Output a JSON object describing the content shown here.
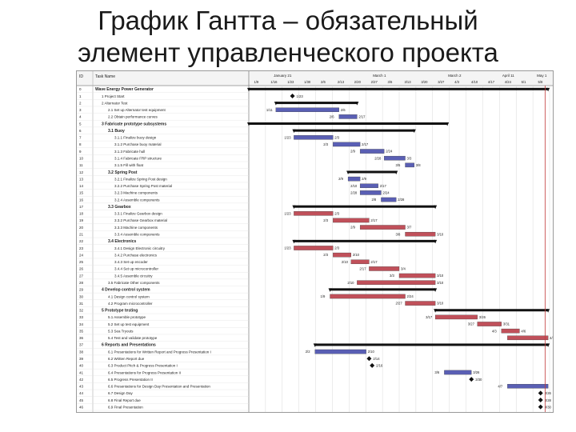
{
  "slide": {
    "title_line1": "График Гантта – обязательный",
    "title_line2": "элемент управленческого проекта"
  },
  "gantt": {
    "columns": {
      "id": "ID",
      "task": "Task Name"
    },
    "months": [
      "January 21",
      "March 1",
      "March 2",
      "April 11",
      "May 1"
    ],
    "weeks": [
      "1/9",
      "1/16",
      "1/23",
      "1/30",
      "2/6",
      "2/13",
      "2/20",
      "2/27",
      "3/6",
      "3/13",
      "3/20",
      "3/27",
      "4/3",
      "4/10",
      "4/17",
      "4/24",
      "5/1",
      "5/8"
    ],
    "rows": [
      {
        "id": "0",
        "name": "Wave Energy Power Generator",
        "level": 0,
        "bold": true,
        "bar": {
          "kind": "summary",
          "start": 0.0,
          "end": 0.995
        }
      },
      {
        "id": "1",
        "name": "1 Project Start",
        "level": 1,
        "bar": {
          "kind": "milestone",
          "start": 0.145,
          "label": "1/23"
        }
      },
      {
        "id": "2",
        "name": "2 Alternator Test",
        "level": 1,
        "bar": {
          "kind": "summary",
          "start": 0.09,
          "end": 0.36
        }
      },
      {
        "id": "3",
        "name": "2.1 Set up Alternator test equipment",
        "level": 2,
        "bar": {
          "kind": "blue",
          "start": 0.09,
          "end": 0.3,
          "l": "1/11",
          "r": "2/6"
        }
      },
      {
        "id": "4",
        "name": "2.2 Obtain performance curves",
        "level": 2,
        "bar": {
          "kind": "blue",
          "start": 0.3,
          "end": 0.36,
          "l": "2/6",
          "r": "2/17"
        }
      },
      {
        "id": "5",
        "name": "3 Fabricate prototype subsystems",
        "level": 1,
        "bold": true,
        "bar": {
          "kind": "summary",
          "start": 0.0,
          "end": 0.66
        }
      },
      {
        "id": "6",
        "name": "3.1 Buoy",
        "level": 2,
        "bold": true,
        "bar": {
          "kind": "summary",
          "start": 0.15,
          "end": 0.55
        }
      },
      {
        "id": "7",
        "name": "3.1.1 Finalize buoy design",
        "level": 3,
        "bar": {
          "kind": "blue",
          "start": 0.15,
          "end": 0.28,
          "l": "1/23",
          "r": "2/3"
        }
      },
      {
        "id": "8",
        "name": "3.1.2 Purchase buoy material",
        "level": 3,
        "bar": {
          "kind": "blue",
          "start": 0.28,
          "end": 0.37,
          "l": "2/3",
          "r": "2/17"
        }
      },
      {
        "id": "9",
        "name": "3.1.3 Fabricate hull",
        "level": 3,
        "bar": {
          "kind": "blue",
          "start": 0.37,
          "end": 0.45,
          "l": "2/9",
          "r": "2/24"
        }
      },
      {
        "id": "10",
        "name": "3.1.4 Fabricate FRP structure",
        "level": 3,
        "bar": {
          "kind": "blue",
          "start": 0.45,
          "end": 0.52,
          "l": "2/28",
          "r": "3/3"
        }
      },
      {
        "id": "11",
        "name": "3.1.5 Fill with float",
        "level": 3,
        "bar": {
          "kind": "blue",
          "start": 0.52,
          "end": 0.55,
          "l": "3/5",
          "r": "3/8"
        }
      },
      {
        "id": "12",
        "name": "3.2 Spring Post",
        "level": 2,
        "bold": true,
        "bar": {
          "kind": "summary",
          "start": 0.33,
          "end": 0.49
        }
      },
      {
        "id": "13",
        "name": "3.2.1 Finalize Spring Post design",
        "level": 3,
        "bar": {
          "kind": "blue",
          "start": 0.33,
          "end": 0.37,
          "l": "2/9",
          "r": "2/9"
        }
      },
      {
        "id": "14",
        "name": "3.2.2 Purchase Spring Post material",
        "level": 3,
        "bar": {
          "kind": "blue",
          "start": 0.37,
          "end": 0.43,
          "l": "2/10",
          "r": "2/17"
        }
      },
      {
        "id": "15",
        "name": "3.2.3 Machine components",
        "level": 3,
        "bar": {
          "kind": "blue",
          "start": 0.37,
          "end": 0.44,
          "l": "2/28",
          "r": "2/24"
        }
      },
      {
        "id": "16",
        "name": "3.2.4 Assemble components",
        "level": 3,
        "bar": {
          "kind": "blue",
          "start": 0.44,
          "end": 0.49,
          "l": "2/8",
          "r": "2/28"
        }
      },
      {
        "id": "17",
        "name": "3.3 Gearbox",
        "level": 2,
        "bold": true,
        "bar": {
          "kind": "summary",
          "start": 0.15,
          "end": 0.62
        }
      },
      {
        "id": "18",
        "name": "3.3.1 Finalize Gearbox design",
        "level": 3,
        "bar": {
          "kind": "red",
          "start": 0.15,
          "end": 0.28,
          "l": "1/23",
          "r": "2/3"
        }
      },
      {
        "id": "19",
        "name": "3.3.2 Purchase Gearbox material",
        "level": 3,
        "bar": {
          "kind": "red",
          "start": 0.28,
          "end": 0.4,
          "l": "2/3",
          "r": "2/17"
        }
      },
      {
        "id": "20",
        "name": "3.3.3 Machine components",
        "level": 3,
        "bar": {
          "kind": "red",
          "start": 0.37,
          "end": 0.52,
          "l": "2/9",
          "r": "3/7"
        }
      },
      {
        "id": "21",
        "name": "3.3.4 Assemble components",
        "level": 3,
        "bar": {
          "kind": "red",
          "start": 0.52,
          "end": 0.62,
          "l": "3/8",
          "r": "3/10"
        }
      },
      {
        "id": "22",
        "name": "3.4 Electronics",
        "level": 2,
        "bold": true,
        "bar": {
          "kind": "summary",
          "start": 0.15,
          "end": 0.62
        }
      },
      {
        "id": "23",
        "name": "3.4.1 Design Electronic circuitry",
        "level": 3,
        "bar": {
          "kind": "red",
          "start": 0.15,
          "end": 0.28,
          "l": "1/23",
          "r": "2/3"
        }
      },
      {
        "id": "24",
        "name": "3.4.2 Purchase electronics",
        "level": 3,
        "bar": {
          "kind": "red",
          "start": 0.28,
          "end": 0.34,
          "l": "2/3",
          "r": "2/10"
        }
      },
      {
        "id": "25",
        "name": "3.4.3 Set up encoder",
        "level": 3,
        "bar": {
          "kind": "red",
          "start": 0.34,
          "end": 0.4,
          "l": "2/10",
          "r": "2/17"
        }
      },
      {
        "id": "26",
        "name": "3.4.4 Set up microcontroller",
        "level": 3,
        "bar": {
          "kind": "red",
          "start": 0.4,
          "end": 0.5,
          "l": "2/17",
          "r": "3/4"
        }
      },
      {
        "id": "27",
        "name": "3.4.5 Assemble circuitry",
        "level": 3,
        "bar": {
          "kind": "red",
          "start": 0.5,
          "end": 0.62,
          "l": "3/3",
          "r": "3/10"
        }
      },
      {
        "id": "28",
        "name": "3.5 Fabricate Other components",
        "level": 2,
        "bar": {
          "kind": "red",
          "start": 0.36,
          "end": 0.62,
          "l": "2/10",
          "r": "3/10"
        }
      },
      {
        "id": "29",
        "name": "4 Develop control system",
        "level": 1,
        "bold": true,
        "bar": {
          "kind": "summary",
          "start": 0.27,
          "end": 0.62
        }
      },
      {
        "id": "30",
        "name": "4.1 Design control system",
        "level": 2,
        "bar": {
          "kind": "red",
          "start": 0.27,
          "end": 0.52,
          "l": "1/9",
          "r": "2/24"
        }
      },
      {
        "id": "31",
        "name": "4.2 Program microcontroller",
        "level": 2,
        "bar": {
          "kind": "red",
          "start": 0.52,
          "end": 0.62,
          "l": "2/27",
          "r": "3/10"
        }
      },
      {
        "id": "32",
        "name": "5 Prototype testing",
        "level": 1,
        "bold": true,
        "bar": {
          "kind": "summary",
          "start": 0.62,
          "end": 0.995
        }
      },
      {
        "id": "33",
        "name": "5.1 Assemble prototype",
        "level": 2,
        "bar": {
          "kind": "red",
          "start": 0.62,
          "end": 0.76,
          "l": "3/17",
          "r": "3/26"
        }
      },
      {
        "id": "34",
        "name": "5.2 Set up test equipment",
        "level": 2,
        "bar": {
          "kind": "red",
          "start": 0.76,
          "end": 0.84,
          "l": "3/27",
          "r": "3/31"
        }
      },
      {
        "id": "35",
        "name": "5.3 Sea Tryouts",
        "level": 2,
        "bar": {
          "kind": "red",
          "start": 0.84,
          "end": 0.9,
          "l": "4/3",
          "r": "4/6"
        }
      },
      {
        "id": "36",
        "name": "5.4 Test and validate prototype",
        "level": 2,
        "bar": {
          "kind": "red",
          "start": 0.86,
          "end": 0.995,
          "l": "",
          "r": "4/17"
        }
      },
      {
        "id": "37",
        "name": "6 Reports and Presentations",
        "level": 1,
        "bold": true,
        "bar": {
          "kind": "summary",
          "start": 0.22,
          "end": 0.995
        }
      },
      {
        "id": "38",
        "name": "6.1 Presentations for Written Report and Progress Presentation I",
        "level": 2,
        "bar": {
          "kind": "blue",
          "start": 0.22,
          "end": 0.39,
          "l": "2/2",
          "r": "2/10"
        }
      },
      {
        "id": "39",
        "name": "6.2 Written Report due",
        "level": 2,
        "bar": {
          "kind": "milestone",
          "start": 0.4,
          "label": "2/14"
        }
      },
      {
        "id": "40",
        "name": "6.3 Product Pitch & Progress Presentation I",
        "level": 2,
        "bar": {
          "kind": "milestone",
          "start": 0.41,
          "label": "2/16"
        }
      },
      {
        "id": "41",
        "name": "6.4 Presentations for Progress Presentation II",
        "level": 2,
        "bar": {
          "kind": "blue",
          "start": 0.65,
          "end": 0.74,
          "l": "3/6",
          "r": "3/26"
        }
      },
      {
        "id": "42",
        "name": "6.5 Progress Presentation II",
        "level": 2,
        "bar": {
          "kind": "milestone",
          "start": 0.74,
          "label": "3/30"
        }
      },
      {
        "id": "43",
        "name": "6.6 Presentations for Design Day Presentation and Presentation",
        "level": 2,
        "bar": {
          "kind": "blue",
          "start": 0.86,
          "end": 0.995,
          "l": "4/7",
          "r": ""
        }
      },
      {
        "id": "44",
        "name": "6.7 Design Day",
        "level": 2,
        "bar": {
          "kind": "milestone",
          "start": 0.97,
          "label": "4/26"
        }
      },
      {
        "id": "45",
        "name": "6.8 Final Report due",
        "level": 2,
        "bar": {
          "kind": "milestone",
          "start": 0.97,
          "label": "4/28"
        }
      },
      {
        "id": "46",
        "name": "6.9 Final Presentation",
        "level": 2,
        "bar": {
          "kind": "milestone",
          "start": 0.97,
          "label": "4/30"
        }
      }
    ],
    "colors": {
      "blue": "#5a5fb4",
      "red": "#c0505a",
      "summary": "#111111",
      "milestone": "#111111",
      "grid": "#d8d8d8"
    }
  }
}
